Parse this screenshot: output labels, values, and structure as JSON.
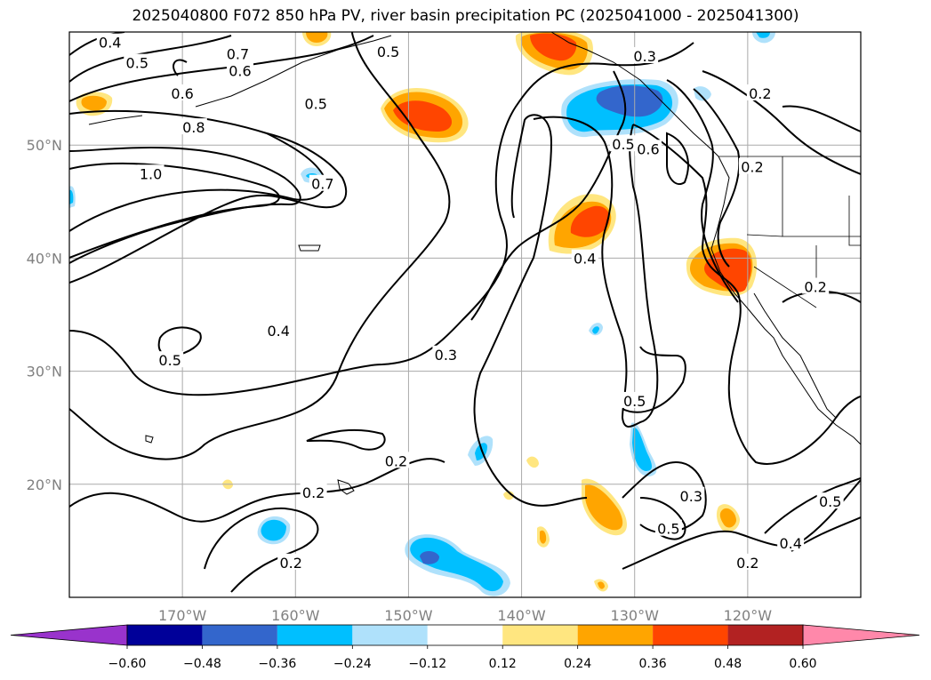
{
  "chart_data": {
    "type": "heatmap",
    "title": "2025040800 F072 850 hPa PV, river basin precipitation PC (2025041000 - 2025041300)",
    "lon_range": [
      -180,
      -110
    ],
    "lat_range": [
      10,
      60
    ],
    "lon_ticks": [
      "170°W",
      "160°W",
      "150°W",
      "140°W",
      "130°W",
      "120°W"
    ],
    "lon_tick_values": [
      -170,
      -160,
      -150,
      -140,
      -130,
      -120
    ],
    "lat_ticks": [
      "50°N",
      "40°N",
      "30°N",
      "20°N"
    ],
    "lat_tick_values": [
      50,
      40,
      30,
      20
    ],
    "grid": true,
    "colorbar": {
      "orientation": "horizontal",
      "extend": "both",
      "levels": [
        -0.6,
        -0.48,
        -0.36,
        -0.24,
        -0.12,
        0.12,
        0.24,
        0.36,
        0.48,
        0.6
      ],
      "tick_labels": [
        "−0.60",
        "−0.48",
        "−0.36",
        "−0.24",
        "−0.12",
        "0.12",
        "0.24",
        "0.36",
        "0.48",
        "0.60"
      ],
      "colors": [
        "#9933cc",
        "#000099",
        "#3366cc",
        "#00bfff",
        "#afe1fb",
        "#ffffff",
        "#ffe680",
        "#ffa500",
        "#ff4500",
        "#b22222",
        "#ff88aa"
      ]
    },
    "contour_labels": [
      {
        "text": "0.4",
        "lon": -176.4,
        "lat": 59.0
      },
      {
        "text": "0.5",
        "lon": -174.0,
        "lat": 57.2
      },
      {
        "text": "0.7",
        "lon": -165.1,
        "lat": 58.0
      },
      {
        "text": "0.6",
        "lon": -164.9,
        "lat": 56.5
      },
      {
        "text": "0.6",
        "lon": -170.0,
        "lat": 54.5
      },
      {
        "text": "0.8",
        "lon": -169.0,
        "lat": 51.5
      },
      {
        "text": "1.0",
        "lon": -172.8,
        "lat": 47.4
      },
      {
        "text": "0.7",
        "lon": -157.6,
        "lat": 46.5
      },
      {
        "text": "0.5",
        "lon": -158.2,
        "lat": 53.6
      },
      {
        "text": "0.5",
        "lon": -151.8,
        "lat": 58.2
      },
      {
        "text": "0.3",
        "lon": -129.1,
        "lat": 57.8
      },
      {
        "text": "0.2",
        "lon": -118.9,
        "lat": 54.5
      },
      {
        "text": "0.5",
        "lon": -131.0,
        "lat": 50.0
      },
      {
        "text": "0.6",
        "lon": -128.8,
        "lat": 49.6
      },
      {
        "text": "0.2",
        "lon": -119.6,
        "lat": 48.0
      },
      {
        "text": "0.4",
        "lon": -134.4,
        "lat": 39.9
      },
      {
        "text": "0.2",
        "lon": -114.0,
        "lat": 37.4
      },
      {
        "text": "0.4",
        "lon": -161.5,
        "lat": 33.5
      },
      {
        "text": "0.5",
        "lon": -171.1,
        "lat": 30.9
      },
      {
        "text": "0.3",
        "lon": -146.7,
        "lat": 31.4
      },
      {
        "text": "0.5",
        "lon": -130.0,
        "lat": 27.3
      },
      {
        "text": "0.2",
        "lon": -151.1,
        "lat": 22.0
      },
      {
        "text": "0.2",
        "lon": -158.4,
        "lat": 19.2
      },
      {
        "text": "0.3",
        "lon": -125.0,
        "lat": 18.9
      },
      {
        "text": "0.5",
        "lon": -112.7,
        "lat": 18.4
      },
      {
        "text": "0.5",
        "lon": -127.0,
        "lat": 16.0
      },
      {
        "text": "0.4",
        "lon": -116.2,
        "lat": 14.7
      },
      {
        "text": "0.2",
        "lon": -160.4,
        "lat": 13.0
      },
      {
        "text": "0.2",
        "lon": -120.0,
        "lat": 13.0
      }
    ]
  }
}
